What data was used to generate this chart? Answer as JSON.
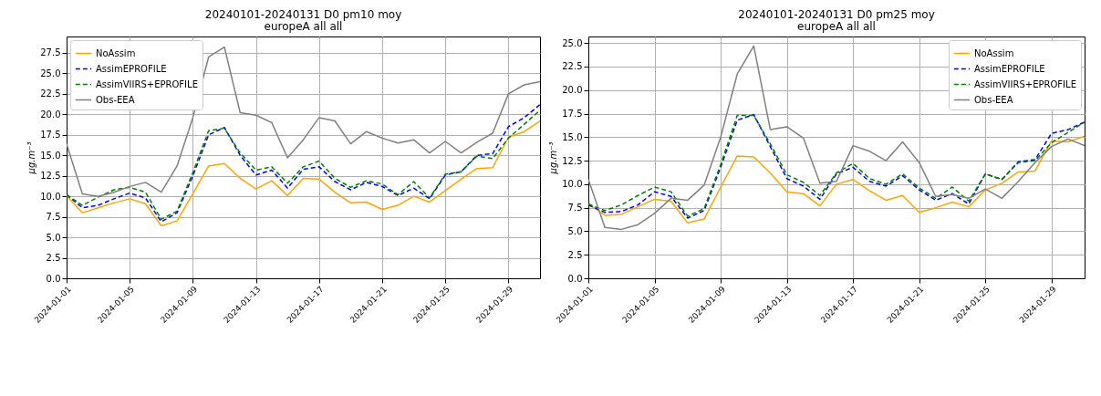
{
  "chart_data": [
    {
      "type": "line",
      "title": "20240101-20240131 D0 pm10 moy",
      "subtitle": "europeA all all",
      "ylabel": "μg.m⁻³",
      "x": [
        "2024-01-01",
        "2024-01-02",
        "2024-01-03",
        "2024-01-04",
        "2024-01-05",
        "2024-01-06",
        "2024-01-07",
        "2024-01-08",
        "2024-01-09",
        "2024-01-10",
        "2024-01-11",
        "2024-01-12",
        "2024-01-13",
        "2024-01-14",
        "2024-01-15",
        "2024-01-16",
        "2024-01-17",
        "2024-01-18",
        "2024-01-19",
        "2024-01-20",
        "2024-01-21",
        "2024-01-22",
        "2024-01-23",
        "2024-01-24",
        "2024-01-25",
        "2024-01-26",
        "2024-01-27",
        "2024-01-28",
        "2024-01-29",
        "2024-01-30",
        "2024-01-31"
      ],
      "xlim": [
        "2024-01-01",
        "2024-01-31"
      ],
      "xticks": [
        "2024-01-01",
        "2024-01-05",
        "2024-01-09",
        "2024-01-13",
        "2024-01-17",
        "2024-01-21",
        "2024-01-25",
        "2024-01-29"
      ],
      "ylim": [
        0,
        29.5
      ],
      "yticks": [
        {
          "value": 0,
          "label": "0.0"
        },
        2.5,
        {
          "value": 5,
          "label": "5.0"
        },
        7.5,
        {
          "value": 10,
          "label": "10.0"
        },
        12.5,
        {
          "value": 15,
          "label": "15.0"
        },
        17.5,
        {
          "value": 20,
          "label": "20.0"
        },
        22.5,
        {
          "value": 25,
          "label": "25.0"
        },
        27.5
      ],
      "grid": true,
      "legend": "top left",
      "series": [
        {
          "name": "NoAssim",
          "color": "#ffa500",
          "line_style": "solid",
          "values": [
            10.1,
            8.0,
            8.6,
            9.2,
            9.7,
            9.1,
            6.4,
            7.0,
            10.3,
            13.7,
            14.0,
            12.2,
            10.9,
            11.9,
            10.1,
            12.2,
            12.1,
            10.5,
            9.2,
            9.3,
            8.4,
            8.9,
            10.0,
            9.3,
            10.7,
            12.1,
            13.4,
            13.5,
            17.2,
            17.9,
            19.2
          ]
        },
        {
          "name": "AssimEPROFILE",
          "color": "#0000ff",
          "line_style": "dashed",
          "values": [
            10.2,
            8.6,
            8.9,
            9.7,
            10.4,
            9.8,
            6.9,
            8.0,
            12.5,
            17.5,
            18.4,
            15.0,
            12.6,
            13.2,
            11.0,
            13.3,
            13.6,
            11.8,
            10.8,
            11.7,
            11.2,
            10.1,
            11.0,
            9.7,
            12.6,
            13.0,
            15.0,
            15.2,
            18.5,
            19.6,
            21.2
          ]
        },
        {
          "name": "AssimVIIRS+EPROFILE",
          "color": "#008000",
          "line_style": "dashed",
          "values": [
            10.2,
            8.9,
            9.9,
            10.8,
            11.1,
            10.5,
            7.2,
            8.2,
            12.9,
            18.0,
            18.3,
            15.3,
            13.2,
            13.6,
            11.6,
            13.6,
            14.3,
            12.2,
            11.1,
            11.9,
            11.5,
            10.2,
            11.8,
            9.8,
            12.7,
            13.0,
            14.9,
            14.6,
            17.1,
            18.8,
            20.5
          ]
        },
        {
          "name": "Obs-EEA",
          "color": "#808080",
          "line_style": "solid",
          "values": [
            16.4,
            10.3,
            10.0,
            10.5,
            11.2,
            11.7,
            10.5,
            13.7,
            19.6,
            27.0,
            28.2,
            20.2,
            19.9,
            19.0,
            14.7,
            16.9,
            19.6,
            19.2,
            16.4,
            17.9,
            17.1,
            16.5,
            16.9,
            15.3,
            16.7,
            15.3,
            16.6,
            17.7,
            22.5,
            23.6,
            24.0
          ]
        }
      ]
    },
    {
      "type": "line",
      "title": "20240101-20240131 D0 pm25 moy",
      "subtitle": "europeA all all",
      "ylabel": "μg.m⁻³",
      "x": [
        "2024-01-01",
        "2024-01-02",
        "2024-01-03",
        "2024-01-04",
        "2024-01-05",
        "2024-01-06",
        "2024-01-07",
        "2024-01-08",
        "2024-01-09",
        "2024-01-10",
        "2024-01-11",
        "2024-01-12",
        "2024-01-13",
        "2024-01-14",
        "2024-01-15",
        "2024-01-16",
        "2024-01-17",
        "2024-01-18",
        "2024-01-19",
        "2024-01-20",
        "2024-01-21",
        "2024-01-22",
        "2024-01-23",
        "2024-01-24",
        "2024-01-25",
        "2024-01-26",
        "2024-01-27",
        "2024-01-28",
        "2024-01-29",
        "2024-01-30",
        "2024-01-31"
      ],
      "xlim": [
        "2024-01-01",
        "2024-01-31"
      ],
      "xticks": [
        "2024-01-01",
        "2024-01-05",
        "2024-01-09",
        "2024-01-13",
        "2024-01-17",
        "2024-01-21",
        "2024-01-25",
        "2024-01-29"
      ],
      "ylim": [
        0,
        25.7
      ],
      "yticks": [
        {
          "value": 0,
          "label": "0.0"
        },
        2.5,
        {
          "value": 5,
          "label": "5.0"
        },
        7.5,
        {
          "value": 10,
          "label": "10.0"
        },
        12.5,
        {
          "value": 15,
          "label": "15.0"
        },
        17.5,
        {
          "value": 20,
          "label": "20.0"
        },
        22.5,
        {
          "value": 25,
          "label": "25.0"
        }
      ],
      "grid": true,
      "legend": "top right",
      "series": [
        {
          "name": "NoAssim",
          "color": "#ffa500",
          "line_style": "solid",
          "values": [
            7.9,
            6.7,
            6.8,
            7.6,
            8.4,
            8.2,
            5.9,
            6.3,
            9.7,
            13.0,
            12.9,
            11.2,
            9.2,
            9.0,
            7.7,
            10.0,
            10.5,
            9.3,
            8.3,
            8.8,
            7.0,
            7.5,
            8.1,
            7.6,
            9.4,
            10.1,
            11.3,
            11.4,
            14.6,
            14.5,
            15.1
          ]
        },
        {
          "name": "AssimEPROFILE",
          "color": "#0000ff",
          "line_style": "dashed",
          "values": [
            7.8,
            7.0,
            7.1,
            7.8,
            9.2,
            8.7,
            6.4,
            7.2,
            11.8,
            16.8,
            17.4,
            14.0,
            10.6,
            9.8,
            8.4,
            11.1,
            11.8,
            10.3,
            9.8,
            10.9,
            9.4,
            8.3,
            9.0,
            7.9,
            11.1,
            10.5,
            12.4,
            12.6,
            15.4,
            15.8,
            16.6
          ]
        },
        {
          "name": "AssimVIIRS+EPROFILE",
          "color": "#008000",
          "line_style": "dashed",
          "values": [
            7.9,
            7.2,
            7.8,
            8.8,
            9.7,
            9.2,
            6.6,
            7.4,
            12.1,
            17.3,
            17.3,
            14.3,
            11.0,
            10.2,
            8.8,
            11.2,
            12.2,
            10.6,
            10.0,
            11.1,
            9.6,
            8.5,
            9.7,
            8.2,
            11.1,
            10.5,
            12.3,
            12.5,
            14.4,
            15.5,
            16.6
          ]
        },
        {
          "name": "Obs-EEA",
          "color": "#808080",
          "line_style": "solid",
          "values": [
            10.5,
            5.4,
            5.2,
            5.7,
            6.9,
            8.5,
            8.3,
            9.9,
            15.0,
            21.7,
            24.7,
            15.8,
            16.1,
            14.9,
            10.1,
            10.3,
            14.1,
            13.5,
            12.5,
            14.5,
            12.3,
            8.7,
            8.9,
            8.5,
            9.5,
            8.5,
            10.3,
            12.3,
            14.0,
            14.8,
            14.1
          ]
        }
      ]
    }
  ]
}
